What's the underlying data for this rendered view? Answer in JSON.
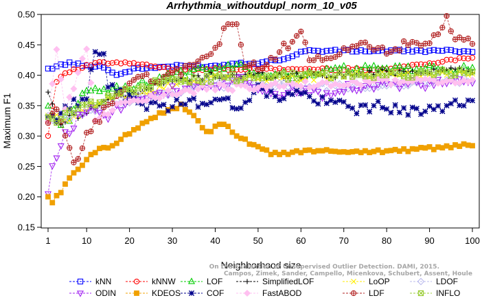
{
  "chart_data": {
    "type": "line",
    "title": "Arrhythmia_withoutdupl_norm_10_v05",
    "xlabel": "Neighborhood size",
    "ylabel": "Maximum F1",
    "xlim": [
      1,
      100
    ],
    "ylim": [
      0.15,
      0.5
    ],
    "x_ticks": [
      1,
      10,
      20,
      30,
      40,
      50,
      60,
      70,
      80,
      90,
      100
    ],
    "y_ticks": [
      0.15,
      0.2,
      0.25,
      0.3,
      0.35,
      0.4,
      0.45,
      0.5
    ],
    "grid": false,
    "legend_position": "bottom",
    "credit": [
      "Campos, Zimek, Sander, Campello, Micenkova, Schubert, Assent, Houle",
      "On the Evaluation of Unsupervised Outlier Detection. DAMI, 2015."
    ],
    "series": [
      {
        "name": "kNN",
        "color": "#0000ff",
        "marker": "square",
        "keypoints": [
          [
            1,
            0.41
          ],
          [
            3,
            0.415
          ],
          [
            6,
            0.42
          ],
          [
            10,
            0.415
          ],
          [
            13,
            0.415
          ],
          [
            15,
            0.41
          ],
          [
            17,
            0.4
          ],
          [
            21,
            0.41
          ],
          [
            30,
            0.415
          ],
          [
            40,
            0.415
          ],
          [
            45,
            0.42
          ],
          [
            50,
            0.42
          ],
          [
            58,
            0.43
          ],
          [
            60,
            0.44
          ],
          [
            100,
            0.44
          ]
        ]
      },
      {
        "name": "kNNW",
        "color": "#ff0000",
        "marker": "circle",
        "keypoints": [
          [
            1,
            0.3
          ],
          [
            2,
            0.35
          ],
          [
            3,
            0.39
          ],
          [
            5,
            0.405
          ],
          [
            8,
            0.41
          ],
          [
            12,
            0.42
          ],
          [
            20,
            0.42
          ],
          [
            30,
            0.41
          ],
          [
            50,
            0.41
          ],
          [
            70,
            0.41
          ],
          [
            80,
            0.41
          ],
          [
            100,
            0.43
          ]
        ]
      },
      {
        "name": "LOF",
        "color": "#00cc00",
        "marker": "triangle",
        "keypoints": [
          [
            1,
            0.35
          ],
          [
            3,
            0.32
          ],
          [
            6,
            0.33
          ],
          [
            9,
            0.37
          ],
          [
            15,
            0.375
          ],
          [
            20,
            0.38
          ],
          [
            25,
            0.39
          ],
          [
            30,
            0.4
          ],
          [
            40,
            0.41
          ],
          [
            47,
            0.415
          ],
          [
            50,
            0.4
          ],
          [
            60,
            0.4
          ],
          [
            70,
            0.41
          ],
          [
            80,
            0.41
          ],
          [
            100,
            0.41
          ]
        ]
      },
      {
        "name": "SimplifiedLOF",
        "color": "#000000",
        "marker": "plus",
        "keypoints": [
          [
            1,
            0.375
          ],
          [
            3,
            0.32
          ],
          [
            6,
            0.33
          ],
          [
            10,
            0.34
          ],
          [
            15,
            0.36
          ],
          [
            20,
            0.37
          ],
          [
            25,
            0.38
          ],
          [
            30,
            0.39
          ],
          [
            40,
            0.4
          ],
          [
            50,
            0.4
          ],
          [
            60,
            0.4
          ],
          [
            70,
            0.4
          ],
          [
            80,
            0.405
          ],
          [
            100,
            0.41
          ]
        ]
      },
      {
        "name": "LoOP",
        "color": "#ffee00",
        "marker": "x",
        "keypoints": [
          [
            1,
            0.33
          ],
          [
            3,
            0.33
          ],
          [
            6,
            0.33
          ],
          [
            10,
            0.345
          ],
          [
            15,
            0.36
          ],
          [
            20,
            0.37
          ],
          [
            25,
            0.375
          ],
          [
            30,
            0.385
          ],
          [
            40,
            0.395
          ],
          [
            50,
            0.395
          ],
          [
            60,
            0.395
          ],
          [
            70,
            0.4
          ],
          [
            80,
            0.4
          ],
          [
            100,
            0.405
          ]
        ]
      },
      {
        "name": "LDOF",
        "color": "#bbbbee",
        "marker": "diamond",
        "keypoints": [
          [
            1,
            0.33
          ],
          [
            3,
            0.32
          ],
          [
            6,
            0.33
          ],
          [
            10,
            0.34
          ],
          [
            15,
            0.35
          ],
          [
            20,
            0.36
          ],
          [
            25,
            0.365
          ],
          [
            30,
            0.37
          ],
          [
            40,
            0.385
          ],
          [
            50,
            0.385
          ],
          [
            60,
            0.38
          ],
          [
            70,
            0.38
          ],
          [
            80,
            0.385
          ],
          [
            100,
            0.395
          ]
        ]
      },
      {
        "name": "ODIN",
        "color": "#a020f0",
        "marker": "triangle-down",
        "keypoints": [
          [
            1,
            0.205
          ],
          [
            2,
            0.25
          ],
          [
            3,
            0.27
          ],
          [
            5,
            0.3
          ],
          [
            8,
            0.33
          ],
          [
            12,
            0.35
          ],
          [
            15,
            0.335
          ],
          [
            20,
            0.36
          ],
          [
            25,
            0.37
          ],
          [
            30,
            0.375
          ],
          [
            35,
            0.38
          ],
          [
            40,
            0.38
          ],
          [
            45,
            0.395
          ],
          [
            50,
            0.38
          ],
          [
            55,
            0.37
          ],
          [
            60,
            0.375
          ],
          [
            65,
            0.37
          ],
          [
            70,
            0.38
          ],
          [
            80,
            0.385
          ],
          [
            90,
            0.385
          ],
          [
            100,
            0.39
          ]
        ]
      },
      {
        "name": "KDEOS",
        "color": "#f0a000",
        "marker": "square-filled",
        "keypoints": [
          [
            1,
            0.2
          ],
          [
            2,
            0.19
          ],
          [
            4,
            0.21
          ],
          [
            6,
            0.23
          ],
          [
            8,
            0.245
          ],
          [
            10,
            0.26
          ],
          [
            13,
            0.28
          ],
          [
            16,
            0.285
          ],
          [
            20,
            0.305
          ],
          [
            25,
            0.33
          ],
          [
            30,
            0.345
          ],
          [
            32,
            0.35
          ],
          [
            36,
            0.325
          ],
          [
            38,
            0.305
          ],
          [
            40,
            0.315
          ],
          [
            42,
            0.32
          ],
          [
            45,
            0.3
          ],
          [
            50,
            0.28
          ],
          [
            54,
            0.27
          ],
          [
            60,
            0.275
          ],
          [
            70,
            0.275
          ],
          [
            80,
            0.275
          ],
          [
            90,
            0.28
          ],
          [
            100,
            0.285
          ]
        ]
      },
      {
        "name": "COF",
        "color": "#00008b",
        "marker": "asterisk",
        "keypoints": [
          [
            1,
            0.33
          ],
          [
            5,
            0.34
          ],
          [
            10,
            0.37
          ],
          [
            12,
            0.445
          ],
          [
            14,
            0.44
          ],
          [
            15,
            0.38
          ],
          [
            20,
            0.36
          ],
          [
            25,
            0.35
          ],
          [
            30,
            0.35
          ],
          [
            35,
            0.355
          ],
          [
            40,
            0.36
          ],
          [
            45,
            0.35
          ],
          [
            50,
            0.375
          ],
          [
            55,
            0.365
          ],
          [
            60,
            0.37
          ],
          [
            65,
            0.355
          ],
          [
            70,
            0.35
          ],
          [
            75,
            0.345
          ],
          [
            80,
            0.35
          ],
          [
            85,
            0.335
          ],
          [
            90,
            0.35
          ],
          [
            95,
            0.35
          ],
          [
            100,
            0.35
          ]
        ]
      },
      {
        "name": "FastABOD",
        "color": "#ffc0f0",
        "marker": "diamond-filled",
        "keypoints": [
          [
            1,
            0.33
          ],
          [
            3,
            0.445
          ],
          [
            5,
            0.34
          ],
          [
            10,
            0.445
          ],
          [
            12,
            0.33
          ],
          [
            15,
            0.34
          ],
          [
            20,
            0.36
          ],
          [
            25,
            0.365
          ],
          [
            30,
            0.37
          ],
          [
            40,
            0.38
          ],
          [
            50,
            0.38
          ],
          [
            60,
            0.385
          ],
          [
            70,
            0.385
          ],
          [
            80,
            0.39
          ],
          [
            100,
            0.39
          ]
        ]
      },
      {
        "name": "LDF",
        "color": "#b22222",
        "marker": "circle-plus",
        "keypoints": [
          [
            1,
            0.32
          ],
          [
            3,
            0.34
          ],
          [
            5,
            0.3
          ],
          [
            7,
            0.25
          ],
          [
            10,
            0.3
          ],
          [
            15,
            0.35
          ],
          [
            20,
            0.39
          ],
          [
            30,
            0.4
          ],
          [
            40,
            0.44
          ],
          [
            42,
            0.475
          ],
          [
            45,
            0.48
          ],
          [
            47,
            0.42
          ],
          [
            50,
            0.41
          ],
          [
            55,
            0.44
          ],
          [
            60,
            0.47
          ],
          [
            62,
            0.43
          ],
          [
            65,
            0.42
          ],
          [
            70,
            0.44
          ],
          [
            75,
            0.45
          ],
          [
            80,
            0.44
          ],
          [
            85,
            0.45
          ],
          [
            90,
            0.45
          ],
          [
            94,
            0.49
          ],
          [
            96,
            0.455
          ],
          [
            100,
            0.455
          ]
        ]
      },
      {
        "name": "INFLO",
        "color": "#99cc33",
        "marker": "square-x",
        "keypoints": [
          [
            1,
            0.33
          ],
          [
            3,
            0.32
          ],
          [
            6,
            0.34
          ],
          [
            10,
            0.35
          ],
          [
            15,
            0.365
          ],
          [
            20,
            0.375
          ],
          [
            25,
            0.385
          ],
          [
            30,
            0.39
          ],
          [
            40,
            0.395
          ],
          [
            50,
            0.395
          ],
          [
            60,
            0.4
          ],
          [
            70,
            0.4
          ],
          [
            80,
            0.4
          ],
          [
            100,
            0.405
          ]
        ]
      }
    ]
  }
}
